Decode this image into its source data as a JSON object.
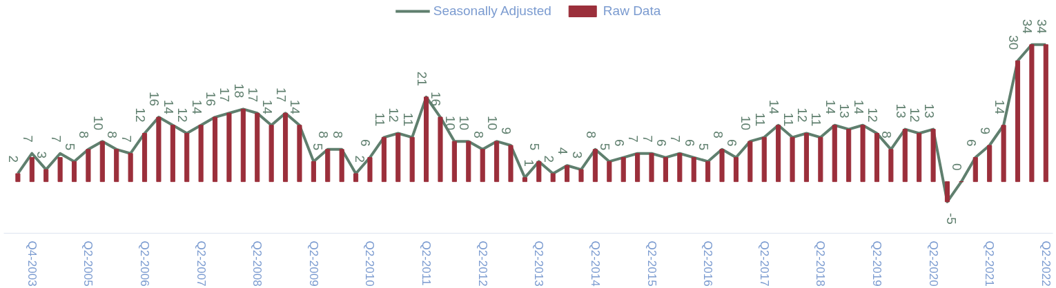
{
  "chart_data": {
    "type": "bar",
    "categories": [
      null,
      "Q4-2003",
      null,
      null,
      null,
      "Q2-2005",
      null,
      null,
      null,
      "Q2-2006",
      null,
      null,
      null,
      "Q2-2007",
      null,
      null,
      null,
      "Q2-2008",
      null,
      null,
      null,
      "Q2-2009",
      null,
      null,
      null,
      "Q2-2010",
      null,
      null,
      null,
      "Q2-2011",
      null,
      null,
      null,
      "Q2-2012",
      null,
      null,
      null,
      "Q2-2013",
      null,
      null,
      null,
      "Q2-2014",
      null,
      null,
      null,
      "Q2-2015",
      null,
      null,
      null,
      "Q2-2016",
      null,
      null,
      null,
      "Q2-2017",
      null,
      null,
      null,
      "Q2-2018",
      null,
      null,
      null,
      "Q2-2019",
      null,
      null,
      null,
      "Q2-2020",
      null,
      null,
      null,
      "Q2-2021",
      null,
      null,
      null,
      "Q2-2022"
    ],
    "series": [
      {
        "name": "Raw Data",
        "type": "bar",
        "color": "#9b2f3b",
        "values": [
          2,
          6,
          3,
          6,
          5,
          8,
          10,
          8,
          7,
          12,
          16,
          14,
          12,
          14,
          16,
          17,
          18,
          17,
          14,
          17,
          14,
          5,
          8,
          8,
          2,
          6,
          11,
          12,
          11,
          21,
          16,
          10,
          10,
          8,
          10,
          9,
          1,
          5,
          2,
          4,
          3,
          8,
          5,
          6,
          7,
          7,
          6,
          7,
          6,
          5,
          8,
          6,
          10,
          11,
          14,
          11,
          12,
          11,
          14,
          13,
          14,
          12,
          8,
          13,
          12,
          13,
          -5,
          0,
          6,
          9,
          14,
          30,
          34,
          34
        ]
      },
      {
        "name": "Seasonally Adjusted",
        "type": "line",
        "color": "#5f7f6e",
        "data_labels": true,
        "values": [
          2,
          7,
          3,
          7,
          5,
          8,
          10,
          8,
          7,
          12,
          16,
          14,
          12,
          14,
          16,
          17,
          18,
          17,
          14,
          17,
          14,
          5,
          8,
          8,
          2,
          6,
          11,
          12,
          11,
          21,
          16,
          10,
          10,
          8,
          10,
          9,
          1,
          5,
          2,
          4,
          3,
          8,
          5,
          6,
          7,
          7,
          6,
          7,
          6,
          5,
          8,
          6,
          10,
          11,
          14,
          11,
          12,
          11,
          14,
          13,
          14,
          12,
          8,
          13,
          12,
          13,
          -5,
          0,
          6,
          9,
          14,
          30,
          34,
          34
        ]
      }
    ],
    "legend": "top",
    "grid": false,
    "marker": "none",
    "line_style": "solid"
  }
}
